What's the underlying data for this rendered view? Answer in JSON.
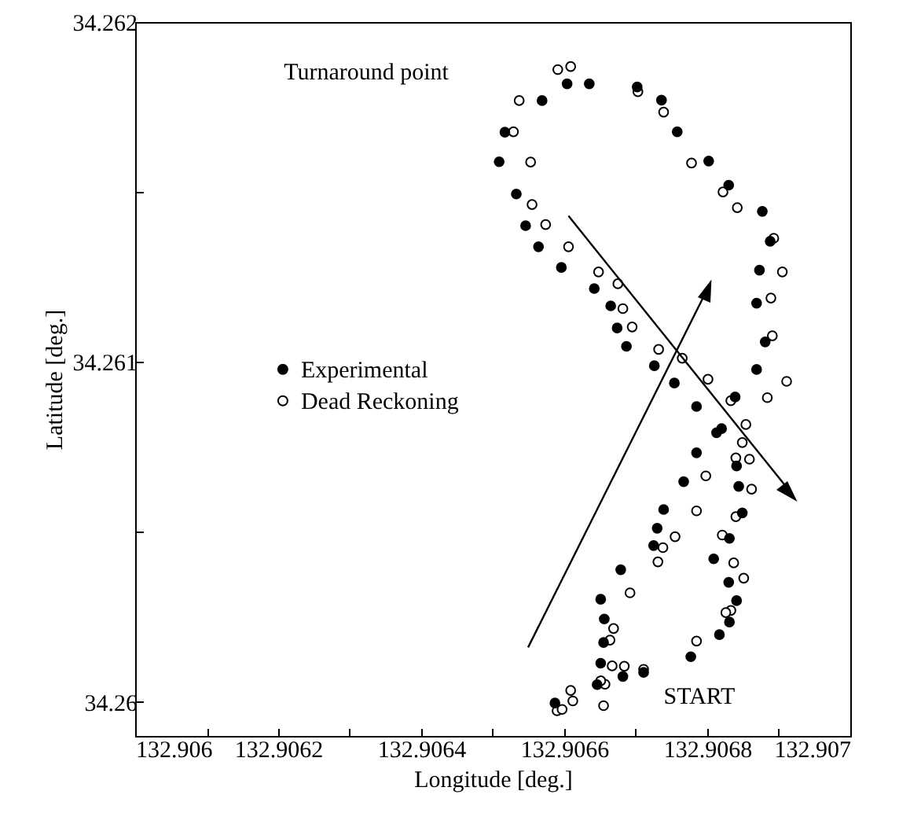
{
  "chart_data": {
    "type": "scatter",
    "xlabel": "Longitude [deg.]",
    "ylabel": "Latitude [deg.]",
    "xlim": [
      132.906,
      132.907
    ],
    "ylim": [
      34.2599,
      34.262
    ],
    "xticks": [
      132.906,
      {
        "value": 132.9061,
        "label": null
      },
      132.9062,
      {
        "value": 132.9063,
        "label": null
      },
      132.9064,
      {
        "value": 132.9065,
        "label": null
      },
      132.9066,
      {
        "value": 132.9067,
        "label": null
      },
      132.9068,
      {
        "value": 132.9069,
        "label": null
      },
      132.907
    ],
    "yticks": [
      34.26,
      {
        "value": 34.2605,
        "label": null
      },
      34.261,
      {
        "value": 34.2615,
        "label": null
      },
      34.262
    ],
    "grid": false,
    "legend": "left",
    "marker": "circle",
    "annotations": [
      "Turnaround point",
      "START"
    ],
    "series": [
      {
        "name": "Experimental",
        "color": "#000000",
        "x": [
          132.906604,
          132.906635,
          132.906569,
          132.906702,
          132.906736,
          132.906517,
          132.906758,
          132.906509,
          132.906802,
          132.90683,
          132.906533,
          132.906877,
          132.906546,
          132.906564,
          132.906888,
          132.906596,
          132.906873,
          132.906642,
          132.906869,
          132.906665,
          132.906674,
          132.906881,
          132.906687,
          132.906726,
          132.906869,
          132.906754,
          132.906839,
          132.906785,
          132.906813,
          132.90682,
          132.906785,
          132.906841,
          132.906767,
          132.906844,
          132.906739,
          132.906849,
          132.90673,
          132.906725,
          132.906831,
          132.906809,
          132.906679,
          132.90683,
          132.906841,
          132.906651,
          132.906656,
          132.906831,
          132.906655,
          132.906817,
          132.906777,
          132.906651,
          132.906682,
          132.906711,
          132.906646,
          132.906587
        ],
        "values": [
          34.261818,
          34.261818,
          34.261769,
          34.261809,
          34.26177,
          34.261676,
          34.261677,
          34.261589,
          34.261591,
          34.26152,
          34.261494,
          34.261443,
          34.261401,
          34.261339,
          34.261355,
          34.261278,
          34.26127,
          34.261216,
          34.261173,
          34.261165,
          34.2611,
          34.261059,
          34.261046,
          34.260989,
          34.260978,
          34.260938,
          34.260897,
          34.260869,
          34.260792,
          34.260804,
          34.260733,
          34.260694,
          34.260648,
          34.260634,
          34.260566,
          34.260556,
          34.260511,
          34.26046,
          34.260481,
          34.260421,
          34.260389,
          34.260352,
          34.260298,
          34.260302,
          34.260244,
          34.260235,
          34.260175,
          34.260198,
          34.260133,
          34.260114,
          34.260075,
          34.260087,
          34.260051,
          34.259997
        ]
      },
      {
        "name": "Dead Reckoning",
        "color": "#000000",
        "x": [
          132.906591,
          132.906609,
          132.906537,
          132.906703,
          132.906739,
          132.906529,
          132.906553,
          132.906778,
          132.906822,
          132.906555,
          132.906842,
          132.906574,
          132.906893,
          132.906606,
          132.906905,
          132.906648,
          132.906675,
          132.906889,
          132.906682,
          132.906695,
          132.906891,
          132.906732,
          132.906765,
          132.906801,
          132.906911,
          132.906884,
          132.906833,
          132.906854,
          132.906849,
          132.90684,
          132.906859,
          132.906798,
          132.906862,
          132.906785,
          132.90684,
          132.906821,
          132.906755,
          132.906738,
          132.906731,
          132.906837,
          132.906851,
          132.906692,
          132.906833,
          132.906826,
          132.906669,
          132.906664,
          132.906785,
          132.906667,
          132.906684,
          132.906711,
          132.906657,
          132.906651,
          132.906609,
          132.906612,
          132.906655,
          132.90659,
          132.906597
        ],
        "values": [
          34.26186,
          34.261869,
          34.261769,
          34.261795,
          34.261735,
          34.261677,
          34.261588,
          34.261585,
          34.2615,
          34.261463,
          34.261454,
          34.261404,
          34.261364,
          34.261339,
          34.261265,
          34.261265,
          34.26123,
          34.261188,
          34.261157,
          34.261103,
          34.261077,
          34.261037,
          34.261011,
          34.260949,
          34.260943,
          34.260895,
          34.260886,
          34.260816,
          34.260763,
          34.260718,
          34.260714,
          34.260665,
          34.260626,
          34.260562,
          34.260545,
          34.260491,
          34.260486,
          34.260454,
          34.260412,
          34.260409,
          34.260364,
          34.260321,
          34.260269,
          34.260263,
          34.260216,
          34.260182,
          34.260179,
          34.260106,
          34.260105,
          34.260096,
          34.260052,
          34.260062,
          34.260034,
          34.260003,
          34.259989,
          34.259974,
          34.259978
        ]
      }
    ]
  }
}
